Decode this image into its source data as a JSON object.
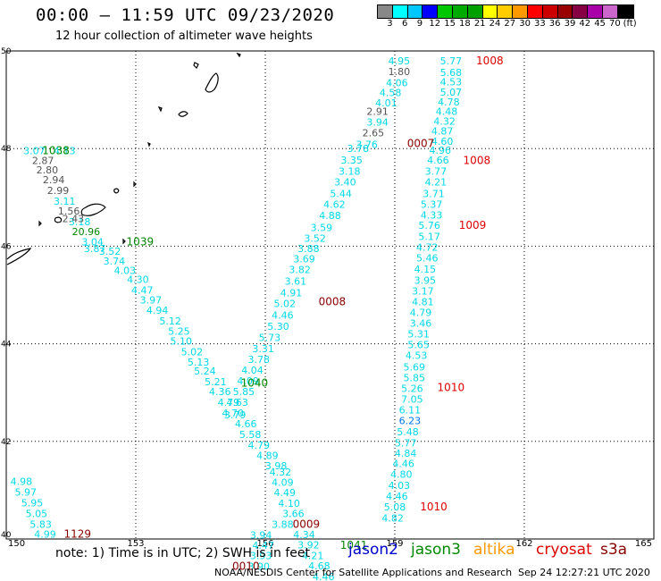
{
  "header": {
    "title": "00:00 – 11:59 UTC 09/23/2020",
    "subtitle": "12 hour collection of altimeter wave heights"
  },
  "legend": {
    "colors": [
      "#888888",
      "#00ffff",
      "#00c8ff",
      "#0000ff",
      "#00c800",
      "#00aa00",
      "#00a000",
      "#ffff00",
      "#ffcc00",
      "#ff9900",
      "#ff0000",
      "#cc0000",
      "#990000",
      "#880044",
      "#aa00aa",
      "#cc66cc",
      "#000000"
    ],
    "labels": [
      "3",
      "6",
      "9",
      "12",
      "15",
      "18",
      "21",
      "24",
      "27",
      "30",
      "33",
      "36",
      "39",
      "42",
      "45",
      "70",
      "(ft)"
    ]
  },
  "axes": {
    "x_ticks": [
      "150",
      "153",
      "156",
      "159",
      "162",
      "165"
    ],
    "y_ticks": [
      "50",
      "48",
      "46",
      "44",
      "42",
      "40"
    ]
  },
  "footer": {
    "note": "note:  1) Time is in UTC;  2) SWH is in feet",
    "satellites": [
      {
        "name": "jason2",
        "color": "#0000cc"
      },
      {
        "name": "jason3",
        "color": "#008800"
      },
      {
        "name": "altika",
        "color": "#ff9900"
      },
      {
        "name": "cryosat",
        "color": "#dd0000"
      },
      {
        "name": "s3a",
        "color": "#880000"
      }
    ],
    "credit": "NOAA/NESDIS Center for Satellite Applications and Research",
    "timestamp": "Sep 24 12:27:21 UTC 2020"
  },
  "tracks": {
    "cyan": [
      [
        "4.95",
        159.1,
        49.8
      ],
      [
        "5.77",
        160.3,
        49.8
      ],
      [
        "5.68",
        160.3,
        49.56
      ],
      [
        "4.53",
        160.3,
        49.37
      ],
      [
        "4.06",
        159.05,
        49.35
      ],
      [
        "5.07",
        160.3,
        49.16
      ],
      [
        "4.58",
        158.9,
        49.15
      ],
      [
        "4.78",
        160.25,
        48.96
      ],
      [
        "4.01",
        158.8,
        48.94
      ],
      [
        "4.48",
        160.2,
        48.76
      ],
      [
        "3.94",
        158.6,
        48.54
      ],
      [
        "4.32",
        160.15,
        48.56
      ],
      [
        "4.87",
        160.1,
        48.36
      ],
      [
        "3.76",
        158.35,
        48.09
      ],
      [
        "4.60",
        160.1,
        48.15
      ],
      [
        "4.96",
        160.05,
        47.97
      ],
      [
        "3.78",
        158.15,
        48.0
      ],
      [
        "3.35",
        158.0,
        47.77
      ],
      [
        "4.66",
        160.0,
        47.77
      ],
      [
        "3.18",
        157.95,
        47.54
      ],
      [
        "3.77",
        159.95,
        47.54
      ],
      [
        "3.40",
        157.85,
        47.32
      ],
      [
        "4.21",
        159.95,
        47.32
      ],
      [
        "5.44",
        157.75,
        47.08
      ],
      [
        "3.71",
        159.9,
        47.08
      ],
      [
        "5.37",
        159.85,
        46.86
      ],
      [
        "4.62",
        157.6,
        46.86
      ],
      [
        "4.33",
        159.85,
        46.64
      ],
      [
        "4.88",
        157.5,
        46.63
      ],
      [
        "5.76",
        159.8,
        46.43
      ],
      [
        "3.59",
        157.3,
        46.38
      ],
      [
        "5.17",
        159.8,
        46.2
      ],
      [
        "3.52",
        157.15,
        46.16
      ],
      [
        "4.72",
        159.75,
        45.98
      ],
      [
        "3.88",
        157.0,
        45.95
      ],
      [
        "5.46",
        159.75,
        45.76
      ],
      [
        "3.69",
        156.9,
        45.74
      ],
      [
        "4.15",
        159.7,
        45.53
      ],
      [
        "3.82",
        156.8,
        45.52
      ],
      [
        "3.95",
        159.7,
        45.3
      ],
      [
        "3.61",
        156.7,
        45.28
      ],
      [
        "3.17",
        159.65,
        45.08
      ],
      [
        "4.91",
        156.6,
        45.05
      ],
      [
        "4.81",
        159.65,
        44.86
      ],
      [
        "5.02",
        156.45,
        44.83
      ],
      [
        "4.79",
        159.6,
        44.64
      ],
      [
        "4.46",
        156.4,
        44.59
      ],
      [
        "3.46",
        159.6,
        44.42
      ],
      [
        "5.30",
        156.3,
        44.36
      ],
      [
        "5.31",
        159.55,
        44.2
      ],
      [
        "5.73",
        156.1,
        44.13
      ],
      [
        "5.65",
        159.55,
        43.98
      ],
      [
        "3.31",
        155.95,
        43.9
      ],
      [
        "4.53",
        159.5,
        43.76
      ],
      [
        "3.78",
        155.85,
        43.68
      ],
      [
        "5.69",
        159.45,
        43.53
      ],
      [
        "4.04",
        155.7,
        43.46
      ],
      [
        "5.85",
        159.45,
        43.31
      ],
      [
        "4.09",
        155.6,
        43.24
      ],
      [
        "5.26",
        159.4,
        43.09
      ],
      [
        "5.85",
        155.5,
        43.02
      ],
      [
        "7.05",
        159.4,
        42.87
      ],
      [
        "4.63",
        155.35,
        42.8
      ],
      [
        "6.11",
        159.35,
        42.65
      ],
      [
        "3.79",
        155.3,
        42.55
      ],
      [
        "5.48",
        159.3,
        42.2
      ],
      [
        "5.77",
        159.25,
        41.97
      ],
      [
        "4.84",
        159.25,
        41.76
      ],
      [
        "4.46",
        159.2,
        41.55
      ],
      [
        "4.80",
        159.15,
        41.33
      ],
      [
        "4.03",
        159.1,
        41.1
      ],
      [
        "4.46",
        159.05,
        40.88
      ],
      [
        "5.08",
        159.0,
        40.66
      ],
      [
        "4.82",
        158.95,
        40.43
      ],
      [
        "4.13",
        151.35,
        47.96
      ],
      [
        "3.07",
        150.65,
        47.96
      ],
      [
        "3.11",
        151.35,
        46.92
      ],
      [
        "3.18",
        151.7,
        46.5
      ],
      [
        "3.04",
        152.0,
        46.09
      ],
      [
        "3.87",
        152.05,
        45.95
      ],
      [
        "3.52",
        152.4,
        45.9
      ],
      [
        "3.74",
        152.5,
        45.7
      ],
      [
        "4.03",
        152.75,
        45.5
      ],
      [
        "4.30",
        153.05,
        45.32
      ],
      [
        "4.47",
        153.15,
        45.1
      ],
      [
        "3.97",
        153.35,
        44.9
      ],
      [
        "4.94",
        153.5,
        44.69
      ],
      [
        "5.12",
        153.8,
        44.47
      ],
      [
        "5.25",
        154.0,
        44.26
      ],
      [
        "5.10",
        154.05,
        44.06
      ],
      [
        "5.02",
        154.3,
        43.84
      ],
      [
        "5.13",
        154.45,
        43.63
      ],
      [
        "5.24",
        154.6,
        43.44
      ],
      [
        "5.21",
        154.85,
        43.22
      ],
      [
        "4.36",
        154.95,
        43.02
      ],
      [
        "4.79",
        155.15,
        42.8
      ],
      [
        "4.70",
        155.25,
        42.58
      ],
      [
        "4.66",
        155.55,
        42.36
      ],
      [
        "5.58",
        155.65,
        42.14
      ],
      [
        "4.79",
        155.85,
        41.92
      ],
      [
        "4.89",
        156.05,
        41.71
      ],
      [
        "3.98",
        156.25,
        41.5
      ],
      [
        "4.32",
        156.35,
        41.37
      ],
      [
        "4.09",
        156.4,
        41.16
      ],
      [
        "4.49",
        156.45,
        40.95
      ],
      [
        "4.10",
        156.55,
        40.73
      ],
      [
        "3.66",
        156.65,
        40.52
      ],
      [
        "3.88",
        156.4,
        40.3
      ],
      [
        "4.34",
        156.9,
        40.09
      ],
      [
        "3.94",
        155.9,
        40.08
      ],
      [
        "3.92",
        157.0,
        39.88
      ],
      [
        "4.47",
        155.95,
        39.87
      ],
      [
        "4.21",
        157.1,
        39.66
      ],
      [
        "3.93",
        155.9,
        39.66
      ],
      [
        "4.68",
        157.25,
        39.45
      ],
      [
        "3.90",
        155.85,
        39.44
      ],
      [
        "4.46",
        157.35,
        39.23
      ],
      [
        "4.98",
        150.35,
        41.18
      ],
      [
        "5.97",
        150.45,
        40.96
      ],
      [
        "5.95",
        150.6,
        40.74
      ],
      [
        "5.05",
        150.7,
        40.52
      ],
      [
        "5.83",
        150.8,
        40.3
      ],
      [
        "4.99",
        150.9,
        40.1
      ]
    ],
    "blue": [
      [
        "6.23",
        159.35,
        42.43
      ]
    ],
    "gray": [
      [
        "1.80",
        159.1,
        49.58
      ],
      [
        "2.91",
        158.6,
        48.76
      ],
      [
        "2.65",
        158.5,
        48.32
      ],
      [
        "2.87",
        150.85,
        47.76
      ],
      [
        "2.80",
        150.95,
        47.56
      ],
      [
        "2.94",
        151.1,
        47.36
      ],
      [
        "2.99",
        151.2,
        47.14
      ],
      [
        "1.56",
        151.45,
        46.72
      ],
      [
        "2.43",
        151.55,
        46.57
      ]
    ],
    "green": [
      [
        "20.96",
        151.85,
        46.3
      ]
    ]
  },
  "markers": [
    {
      "label": "1008",
      "lon": 161.2,
      "lat": 49.8,
      "color": "#dd0000"
    },
    {
      "label": "0007",
      "lon": 159.6,
      "lat": 48.1,
      "color": "#880000"
    },
    {
      "label": "1008",
      "lon": 160.9,
      "lat": 47.76,
      "color": "#dd0000"
    },
    {
      "label": "1009",
      "lon": 160.8,
      "lat": 46.43,
      "color": "#dd0000"
    },
    {
      "label": "0008",
      "lon": 157.55,
      "lat": 44.86,
      "color": "#880000"
    },
    {
      "label": "1010",
      "lon": 160.3,
      "lat": 43.1,
      "color": "#dd0000"
    },
    {
      "label": "1010",
      "lon": 159.9,
      "lat": 40.66,
      "color": "#dd0000"
    },
    {
      "label": "1038",
      "lon": 151.15,
      "lat": 47.96,
      "color": "#008800"
    },
    {
      "label": "1039",
      "lon": 153.1,
      "lat": 46.09,
      "color": "#008800"
    },
    {
      "label": "1040",
      "lon": 155.75,
      "lat": 43.2,
      "color": "#008800"
    },
    {
      "label": "0009",
      "lon": 156.95,
      "lat": 40.3,
      "color": "#880000"
    },
    {
      "label": "1041",
      "lon": 158.05,
      "lat": 39.87,
      "color": "#008800"
    },
    {
      "label": "0010",
      "lon": 155.55,
      "lat": 39.44,
      "color": "#880000"
    },
    {
      "label": "1129",
      "lon": 151.65,
      "lat": 40.1,
      "color": "#880000"
    }
  ]
}
